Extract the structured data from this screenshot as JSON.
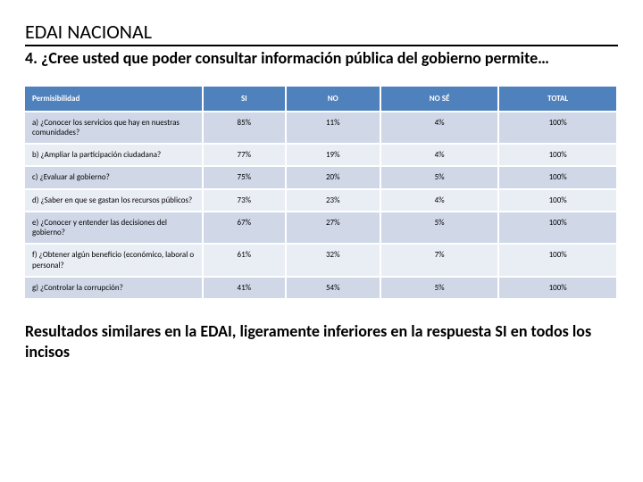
{
  "title": "EDAI NACIONAL",
  "subtitle": "4. ¿Cree usted que poder consultar información pública del gobierno permite…",
  "footnote": "Resultados similares en la EDAI, ligeramente inferiores en la respuesta SI en todos los incisos",
  "table": {
    "type": "table",
    "header_bg": "#4f81bd",
    "header_fg": "#ffffff",
    "row_odd_bg": "#d0d8e8",
    "row_even_bg": "#e9edf4",
    "border_color": "#ffffff",
    "label_fontsize": 9,
    "columns": [
      "Permisibilidad",
      "SI",
      "NO",
      "NO SÉ",
      "TOTAL"
    ],
    "rows": [
      {
        "label": "a) ¿Conocer los servicios que hay en nuestras comunidades?",
        "si": "85%",
        "no": "11%",
        "nose": "4%",
        "total": "100%"
      },
      {
        "label": "b) ¿Ampliar la participación ciudadana?",
        "si": "77%",
        "no": "19%",
        "nose": "4%",
        "total": "100%"
      },
      {
        "label": "c) ¿Evaluar al gobierno?",
        "si": "75%",
        "no": "20%",
        "nose": "5%",
        "total": "100%"
      },
      {
        "label": "d) ¿Saber en que se gastan los recursos públicos?",
        "si": "73%",
        "no": "23%",
        "nose": "4%",
        "total": "100%"
      },
      {
        "label": "e) ¿Conocer y entender las decisiones del gobierno?",
        "si": "67%",
        "no": "27%",
        "nose": "5%",
        "total": "100%"
      },
      {
        "label": "f) ¿Obtener algún beneficio (económico, laboral o personal?",
        "si": "61%",
        "no": "32%",
        "nose": "7%",
        "total": "100%"
      },
      {
        "label": "g) ¿Controlar la corrupción?",
        "si": "41%",
        "no": "54%",
        "nose": "5%",
        "total": "100%"
      }
    ]
  }
}
